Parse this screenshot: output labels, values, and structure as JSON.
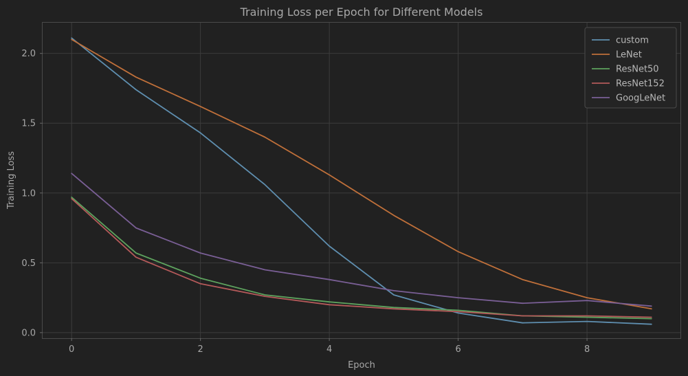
{
  "chart_data": {
    "type": "line",
    "title": "Training Loss per Epoch for Different Models",
    "xlabel": "Epoch",
    "ylabel": "Training Loss",
    "x": [
      0,
      1,
      2,
      3,
      4,
      5,
      6,
      7,
      8,
      9
    ],
    "xlim": [
      -0.45,
      9.45
    ],
    "ylim": [
      -0.04,
      2.22
    ],
    "xticks": [
      0,
      2,
      4,
      6,
      8
    ],
    "yticks": [
      0.0,
      0.5,
      1.0,
      1.5,
      2.0
    ],
    "xtick_labels": [
      "0",
      "2",
      "4",
      "6",
      "8"
    ],
    "ytick_labels": [
      "0.0",
      "0.5",
      "1.0",
      "1.5",
      "2.0"
    ],
    "grid": true,
    "legend_position": "top-right",
    "series": [
      {
        "name": "custom",
        "color": "#5f8fb0",
        "values": [
          2.11,
          1.74,
          1.43,
          1.06,
          0.62,
          0.27,
          0.14,
          0.07,
          0.08,
          0.06
        ]
      },
      {
        "name": "LeNet",
        "color": "#c0703a",
        "values": [
          2.1,
          1.83,
          1.62,
          1.4,
          1.13,
          0.84,
          0.58,
          0.38,
          0.25,
          0.17
        ]
      },
      {
        "name": "ResNet50",
        "color": "#5ea35e",
        "values": [
          0.97,
          0.57,
          0.39,
          0.27,
          0.22,
          0.18,
          0.16,
          0.12,
          0.11,
          0.1
        ]
      },
      {
        "name": "ResNet152",
        "color": "#b55a5a",
        "values": [
          0.96,
          0.54,
          0.35,
          0.26,
          0.2,
          0.17,
          0.15,
          0.12,
          0.12,
          0.11
        ]
      },
      {
        "name": "GoogLeNet",
        "color": "#7a5f96",
        "values": [
          1.14,
          0.75,
          0.57,
          0.45,
          0.38,
          0.3,
          0.25,
          0.21,
          0.23,
          0.19
        ]
      }
    ]
  }
}
